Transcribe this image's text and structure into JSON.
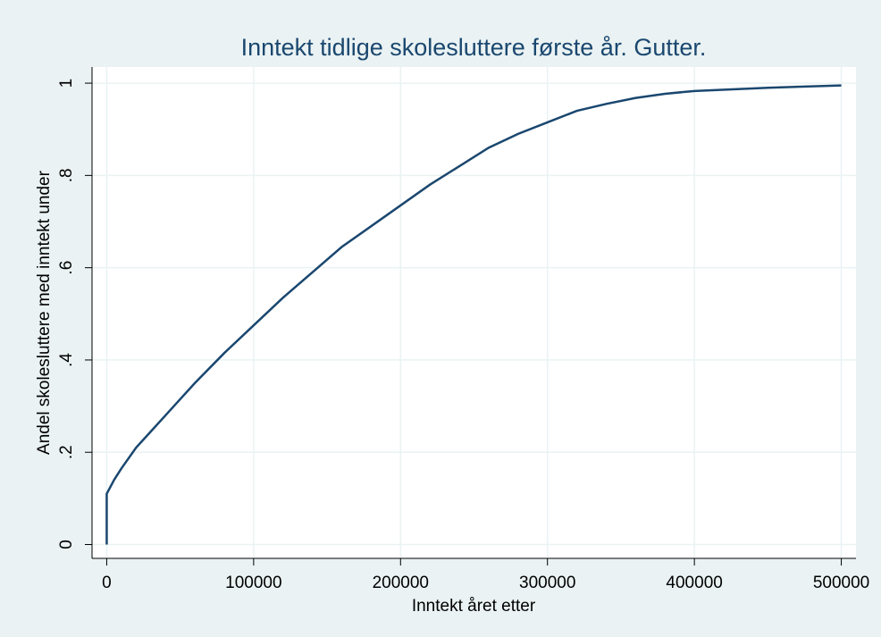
{
  "chart_data": {
    "type": "line",
    "title": "Inntekt tidlige skolesluttere første år. Gutter.",
    "xlabel": "Inntekt året etter",
    "ylabel": "Andel skolesluttere med inntekt under",
    "x": [
      0,
      0,
      5000,
      10000,
      20000,
      30000,
      40000,
      50000,
      60000,
      80000,
      100000,
      120000,
      140000,
      160000,
      180000,
      200000,
      220000,
      240000,
      260000,
      280000,
      300000,
      320000,
      340000,
      360000,
      380000,
      400000,
      450000,
      500000
    ],
    "values": [
      0,
      0.11,
      0.14,
      0.165,
      0.21,
      0.245,
      0.28,
      0.315,
      0.35,
      0.415,
      0.475,
      0.535,
      0.59,
      0.645,
      0.69,
      0.735,
      0.78,
      0.82,
      0.86,
      0.89,
      0.915,
      0.94,
      0.955,
      0.968,
      0.977,
      0.983,
      0.99,
      0.995
    ],
    "color": "#1a476f",
    "xlim": [
      -10000,
      510000
    ],
    "ylim": [
      -0.03,
      1.035
    ],
    "xticks": [
      0,
      100000,
      200000,
      300000,
      400000,
      500000
    ],
    "yticks": [
      0,
      {
        "value": 0.2,
        "label": ".2"
      },
      {
        "value": 0.4,
        "label": ".4"
      },
      {
        "value": 0.6,
        "label": ".6"
      },
      {
        "value": 0.8,
        "label": ".8"
      },
      1
    ],
    "grid": true
  }
}
